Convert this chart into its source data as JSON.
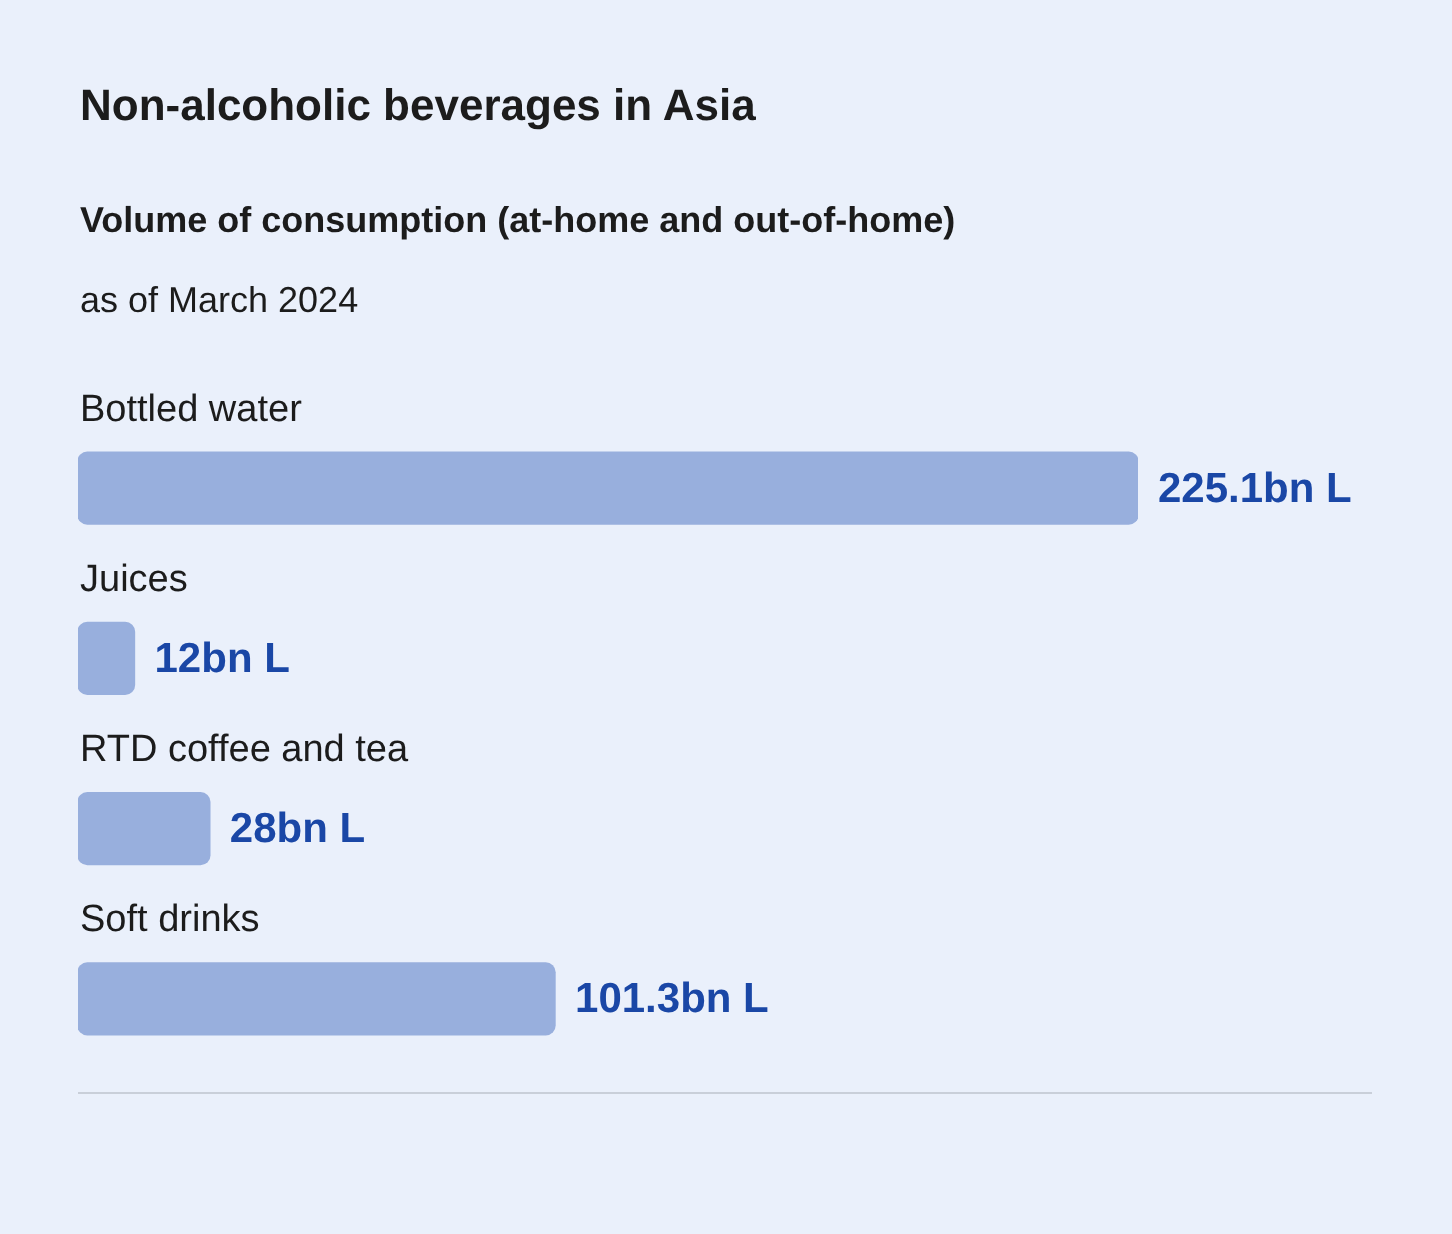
{
  "chart_data": {
    "type": "bar",
    "orientation": "horizontal",
    "title": "Non-alcoholic beverages in Asia",
    "subtitle": "Volume of consumption (at-home and out-of-home)",
    "annotations": [
      "as of March 2024"
    ],
    "categories": [
      "Bottled water",
      "Juices",
      "RTD coffee and tea",
      "Soft drinks"
    ],
    "values": [
      225.1,
      12,
      28,
      101.3
    ],
    "value_labels": [
      "225.1bn L",
      "12bn L",
      "28bn L",
      "101.3bn L"
    ],
    "color": "#98afdd"
  }
}
